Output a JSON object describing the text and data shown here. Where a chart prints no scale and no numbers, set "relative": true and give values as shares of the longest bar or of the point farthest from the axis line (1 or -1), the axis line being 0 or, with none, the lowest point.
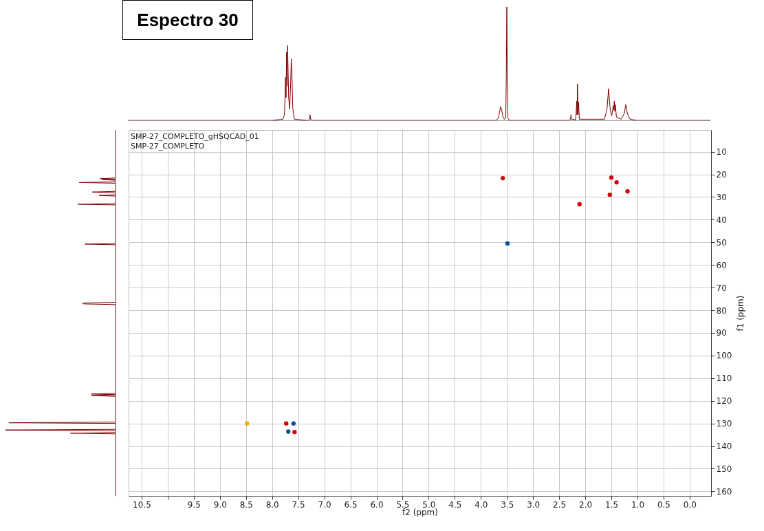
{
  "chart_data": [
    {
      "type": "line",
      "title": "Espectro 30",
      "relative": true,
      "tick_labels": false,
      "xlim": [
        10.75,
        -0.41
      ],
      "color": "#7f0000",
      "x": [
        10.75,
        8.0,
        7.78,
        7.75,
        7.73,
        7.72,
        7.71,
        7.7,
        7.69,
        7.67,
        7.65,
        7.63,
        7.62,
        7.61,
        7.59,
        7.56,
        7.3,
        7.27,
        7.26,
        7.25,
        7.2,
        3.7,
        3.65,
        3.63,
        3.61,
        3.59,
        3.57,
        3.54,
        3.51,
        3.5,
        3.49,
        3.48,
        3.47,
        3.44,
        2.3,
        2.27,
        2.26,
        2.25,
        2.17,
        2.15,
        2.145,
        2.135,
        2.125,
        2.115,
        2.1,
        1.62,
        1.57,
        1.54,
        1.51,
        1.48,
        1.45,
        1.44,
        1.43,
        1.42,
        1.41,
        1.39,
        1.3,
        1.24,
        1.21,
        1.18,
        1.13,
        1.0,
        -0.41
      ],
      "values": [
        0,
        0,
        0.01,
        0.05,
        0.38,
        0.2,
        0.6,
        0.3,
        0.66,
        0.2,
        0.1,
        0.35,
        0.54,
        0.45,
        0.1,
        0.01,
        0,
        0.01,
        0.05,
        0.01,
        0,
        0,
        0.02,
        0.07,
        0.12,
        0.1,
        0.04,
        0.01,
        0.02,
        0.4,
        1,
        0.4,
        0.02,
        0,
        0,
        0.01,
        0.05,
        0.01,
        0.005,
        0.17,
        0.05,
        0.32,
        0.05,
        0.16,
        0.01,
        0.01,
        0.1,
        0.28,
        0.1,
        0.04,
        0.13,
        0.09,
        0.17,
        0.08,
        0.14,
        0.03,
        0.01,
        0.06,
        0.14,
        0.06,
        0.01,
        0,
        0
      ]
    },
    {
      "type": "line",
      "orientation": "horizontal",
      "relative": true,
      "tick_labels": false,
      "ylim": [
        162,
        0.4
      ],
      "color": "#7f0000",
      "x": [
        0.4,
        21.6,
        21.9,
        22.1,
        22.3,
        22.6,
        23.3,
        23.6,
        23.9,
        27.5,
        27.8,
        28.1,
        29.0,
        29.3,
        29.6,
        32.9,
        33.2,
        33.5,
        50.5,
        50.8,
        51.1,
        76.5,
        76.8,
        77.0,
        77.2,
        77.5,
        116.7,
        117.0,
        117.3,
        117.7,
        118.0,
        129.4,
        129.7,
        130.0,
        132.6,
        132.9,
        133.2,
        134.0,
        134.3,
        134.6,
        162
      ],
      "values": [
        0,
        0,
        -0.14,
        0,
        -0.12,
        0,
        0,
        -0.33,
        0,
        0,
        -0.21,
        0,
        0,
        -0.15,
        0,
        0,
        -0.34,
        0,
        0,
        -0.28,
        0,
        0,
        -0.29,
        -0.3,
        -0.29,
        0,
        0,
        -0.22,
        0,
        -0.22,
        0,
        0,
        -0.97,
        0,
        0,
        -1,
        0,
        0,
        -0.41,
        0,
        0
      ]
    },
    {
      "type": "scatter",
      "marker": "circle",
      "grid": true,
      "xlabel": "f2 (ppm)",
      "ylabel": "f1 (ppm)",
      "annotations": [
        "SMP-27_COMPLETO_gHSQCAD_01",
        "SMP-27_COMPLETO"
      ],
      "xlim": [
        10.75,
        -0.41
      ],
      "ylim": [
        162,
        0.4
      ],
      "xticks": [
        {
          "value": 10.5,
          "label": "10.5"
        },
        {
          "value": 10,
          "label": null
        },
        {
          "value": 9.5,
          "label": "9.5"
        },
        {
          "value": 9,
          "label": "9.0"
        },
        {
          "value": 8.5,
          "label": "8.5"
        },
        {
          "value": 8,
          "label": "8.0"
        },
        {
          "value": 7.5,
          "label": "7.5"
        },
        {
          "value": 7,
          "label": "7.0"
        },
        {
          "value": 6.5,
          "label": "6.5"
        },
        {
          "value": 6,
          "label": "6.0"
        },
        {
          "value": 5.5,
          "label": "5.5"
        },
        {
          "value": 5,
          "label": "5.0"
        },
        {
          "value": 4.5,
          "label": "4.5"
        },
        {
          "value": 4,
          "label": "4.0"
        },
        {
          "value": 3.5,
          "label": "3.5"
        },
        {
          "value": 3,
          "label": "3.0"
        },
        {
          "value": 2.5,
          "label": "2.5"
        },
        {
          "value": 2,
          "label": "2.0"
        },
        {
          "value": 1.5,
          "label": "1.5"
        },
        {
          "value": 1,
          "label": "1.0"
        },
        {
          "value": 0.5,
          "label": "0.5"
        },
        {
          "value": 0,
          "label": "0.0"
        }
      ],
      "yticks": [
        10,
        20,
        30,
        40,
        50,
        60,
        70,
        80,
        90,
        100,
        110,
        120,
        130,
        140,
        150,
        160
      ],
      "series": [
        {
          "color": "#d40000",
          "x": [
            3.58,
            1.5,
            1.4,
            1.19,
            1.53,
            2.11,
            7.73,
            7.57
          ],
          "values": [
            21.7,
            21.4,
            23.5,
            27.5,
            29.0,
            33.2,
            130.0,
            133.8
          ]
        },
        {
          "color": "#0b4f9c",
          "x": [
            3.49,
            7.59,
            7.69
          ],
          "values": [
            50.5,
            130.0,
            133.6
          ]
        },
        {
          "color": "#ffa500",
          "x": [
            8.48
          ],
          "values": [
            130.0
          ]
        }
      ]
    }
  ]
}
